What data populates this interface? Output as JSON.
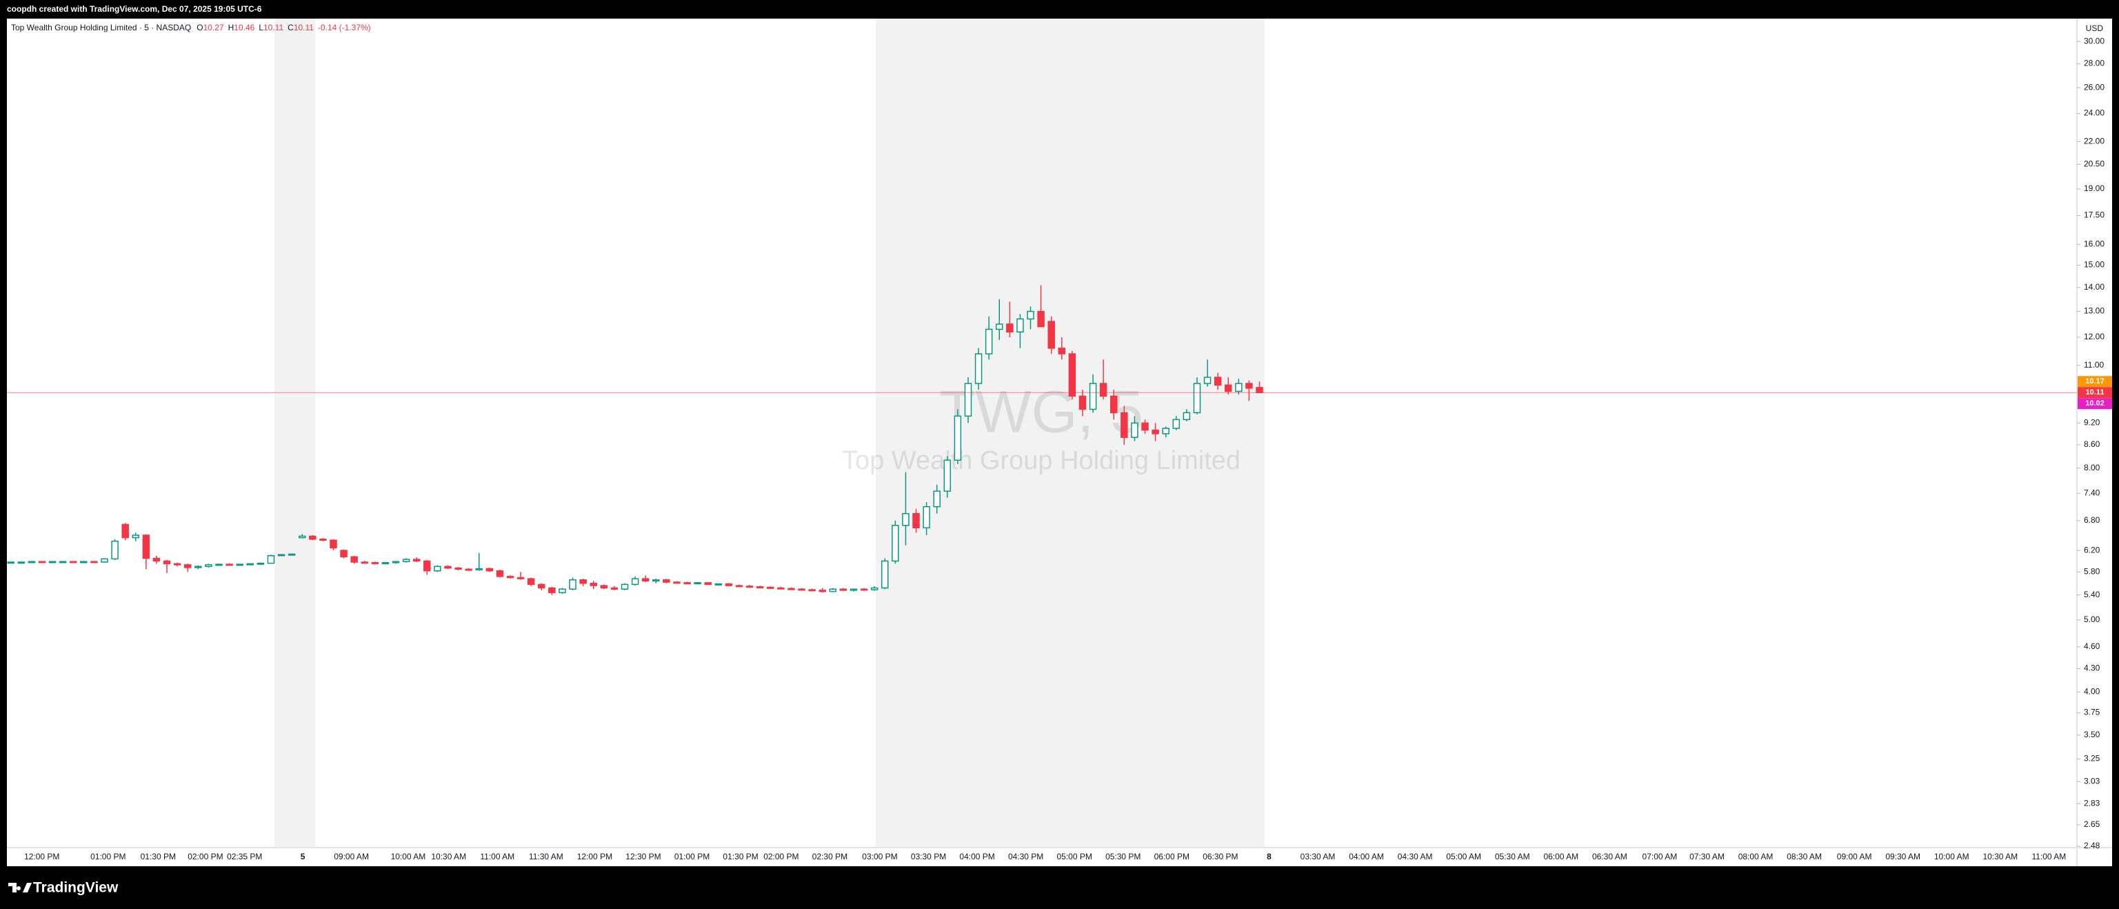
{
  "header": {
    "text": "coopdh created with TradingView.com, Dec 07, 2025 19:05 UTC-6"
  },
  "footer": {
    "brand": "TradingView"
  },
  "chart_data": {
    "type": "candlestick",
    "title": "Top Wealth Group Holding Limited · 5 · NASDAQ",
    "legend": [
      {
        "key": "O",
        "value": "10.27"
      },
      {
        "key": "H",
        "value": "10.46"
      },
      {
        "key": "L",
        "value": "10.11"
      },
      {
        "key": "C",
        "value": "10.11"
      }
    ],
    "change": "-0.14 (-1.37%)",
    "watermark": {
      "symbol": "TWG, 5",
      "name": "Top Wealth Group Holding Limited"
    },
    "currency": "USD",
    "up_color": "#089981",
    "down_color": "#f23645",
    "log_scale": true,
    "ylim": [
      2.48,
      32.2
    ],
    "yticks": [
      {
        "value": 30,
        "label": "30.00"
      },
      {
        "value": 28,
        "label": "28.00"
      },
      {
        "value": 26,
        "label": "26.00"
      },
      {
        "value": 24,
        "label": "24.00"
      },
      {
        "value": 22,
        "label": "22.00"
      },
      {
        "value": 20.5,
        "label": "20.50"
      },
      {
        "value": 19,
        "label": "19.00"
      },
      {
        "value": 17.5,
        "label": "17.50"
      },
      {
        "value": 16,
        "label": "16.00"
      },
      {
        "value": 15,
        "label": "15.00"
      },
      {
        "value": 14,
        "label": "14.00"
      },
      {
        "value": 13,
        "label": "13.00"
      },
      {
        "value": 12,
        "label": "12.00"
      },
      {
        "value": 11,
        "label": "11.00"
      },
      {
        "value": 9.2,
        "label": "9.20"
      },
      {
        "value": 8.6,
        "label": "8.60"
      },
      {
        "value": 8,
        "label": "8.00"
      },
      {
        "value": 7.4,
        "label": "7.40"
      },
      {
        "value": 6.8,
        "label": "6.80"
      },
      {
        "value": 6.2,
        "label": "6.20"
      },
      {
        "value": 5.8,
        "label": "5.80"
      },
      {
        "value": 5.4,
        "label": "5.40"
      },
      {
        "value": 5,
        "label": "5.00"
      },
      {
        "value": 4.6,
        "label": "4.60"
      },
      {
        "value": 4.3,
        "label": "4.30"
      },
      {
        "value": 4,
        "label": "4.00"
      },
      {
        "value": 3.75,
        "label": "3.75"
      },
      {
        "value": 3.5,
        "label": "3.50"
      },
      {
        "value": 3.25,
        "label": "3.25"
      },
      {
        "value": 3.03,
        "label": "3.03"
      },
      {
        "value": 2.83,
        "label": "2.83"
      },
      {
        "value": 2.65,
        "label": "2.65"
      },
      {
        "value": 2.48,
        "label": "2.48"
      }
    ],
    "price_labels": [
      {
        "value": 10.17,
        "color": "#ff9800"
      },
      {
        "value": 10.11,
        "color": "#f23645"
      },
      {
        "value": 10.02,
        "color": "#e91ec4"
      }
    ],
    "time_labels": [
      "12:00 PM",
      "01:00 PM",
      "01:30 PM",
      "02:00 PM",
      "02:35 PM",
      "5",
      "09:00 AM",
      "10:00 AM",
      "10:30 AM",
      "11:00 AM",
      "11:30 AM",
      "12:00 PM",
      "12:30 PM",
      "01:00 PM",
      "01:30 PM",
      "02:00 PM",
      "02:30 PM",
      "03:00 PM",
      "03:30 PM",
      "04:00 PM",
      "04:30 PM",
      "05:00 PM",
      "05:30 PM",
      "06:00 PM",
      "06:30 PM",
      "8",
      "03:30 AM",
      "04:00 AM",
      "04:30 AM",
      "05:00 AM",
      "05:30 AM",
      "06:00 AM",
      "06:30 AM",
      "07:00 AM",
      "07:30 AM",
      "08:00 AM",
      "08:30 AM",
      "09:00 AM",
      "09:30 AM",
      "10:00 AM",
      "10:30 AM",
      "11:00 AM"
    ],
    "ohlc": [
      [
        5.97,
        5.99,
        5.96,
        5.98
      ],
      [
        5.98,
        5.99,
        5.97,
        5.98
      ],
      [
        5.98,
        6.0,
        5.97,
        5.99
      ],
      [
        5.99,
        6.0,
        5.98,
        5.98
      ],
      [
        5.98,
        5.99,
        5.97,
        5.99
      ],
      [
        5.99,
        6.0,
        5.98,
        5.99
      ],
      [
        5.99,
        6.0,
        5.98,
        5.98
      ],
      [
        5.98,
        5.99,
        5.97,
        5.99
      ],
      [
        5.99,
        6.0,
        5.98,
        5.98
      ],
      [
        5.98,
        6.05,
        5.97,
        6.04
      ],
      [
        6.04,
        6.42,
        6.02,
        6.38
      ],
      [
        6.72,
        6.75,
        6.4,
        6.45
      ],
      [
        6.45,
        6.55,
        6.38,
        6.5
      ],
      [
        6.5,
        6.52,
        5.85,
        6.05
      ],
      [
        6.05,
        6.1,
        5.95,
        6.0
      ],
      [
        6.0,
        6.02,
        5.78,
        5.95
      ],
      [
        5.95,
        5.97,
        5.9,
        5.93
      ],
      [
        5.93,
        5.95,
        5.8,
        5.88
      ],
      [
        5.88,
        5.92,
        5.85,
        5.9
      ],
      [
        5.9,
        5.95,
        5.88,
        5.93
      ],
      [
        5.93,
        5.95,
        5.92,
        5.94
      ],
      [
        5.94,
        5.96,
        5.92,
        5.93
      ],
      [
        5.93,
        5.95,
        5.92,
        5.94
      ],
      [
        5.94,
        5.96,
        5.93,
        5.95
      ],
      [
        5.95,
        5.97,
        5.93,
        5.96
      ],
      [
        5.96,
        6.12,
        5.95,
        6.1
      ],
      [
        6.12,
        6.13,
        6.11,
        6.12
      ],
      [
        6.12,
        6.14,
        6.11,
        6.13
      ],
      [
        6.45,
        6.52,
        6.44,
        6.48
      ],
      [
        6.48,
        6.5,
        6.4,
        6.42
      ],
      [
        6.42,
        6.44,
        6.38,
        6.4
      ],
      [
        6.4,
        6.42,
        6.2,
        6.25
      ],
      [
        6.2,
        6.22,
        6.05,
        6.08
      ],
      [
        6.08,
        6.1,
        5.95,
        5.98
      ],
      [
        5.98,
        6.0,
        5.95,
        5.97
      ],
      [
        5.97,
        5.99,
        5.94,
        5.95
      ],
      [
        5.95,
        5.98,
        5.94,
        5.97
      ],
      [
        5.97,
        6.0,
        5.95,
        5.99
      ],
      [
        5.99,
        6.05,
        5.97,
        6.03
      ],
      [
        6.03,
        6.07,
        5.98,
        6.0
      ],
      [
        6.0,
        6.02,
        5.75,
        5.82
      ],
      [
        5.82,
        5.92,
        5.8,
        5.9
      ],
      [
        5.9,
        5.92,
        5.85,
        5.87
      ],
      [
        5.87,
        5.89,
        5.83,
        5.85
      ],
      [
        5.85,
        5.87,
        5.82,
        5.84
      ],
      [
        5.84,
        6.15,
        5.82,
        5.86
      ],
      [
        5.86,
        5.88,
        5.8,
        5.82
      ],
      [
        5.82,
        5.84,
        5.7,
        5.72
      ],
      [
        5.72,
        5.74,
        5.68,
        5.7
      ],
      [
        5.7,
        5.8,
        5.66,
        5.68
      ],
      [
        5.68,
        5.7,
        5.55,
        5.58
      ],
      [
        5.58,
        5.6,
        5.48,
        5.52
      ],
      [
        5.52,
        5.54,
        5.4,
        5.44
      ],
      [
        5.44,
        5.52,
        5.42,
        5.5
      ],
      [
        5.5,
        5.7,
        5.48,
        5.66
      ],
      [
        5.66,
        5.68,
        5.55,
        5.6
      ],
      [
        5.6,
        5.64,
        5.5,
        5.56
      ],
      [
        5.56,
        5.58,
        5.5,
        5.52
      ],
      [
        5.52,
        5.55,
        5.48,
        5.5
      ],
      [
        5.5,
        5.6,
        5.48,
        5.58
      ],
      [
        5.58,
        5.72,
        5.56,
        5.68
      ],
      [
        5.68,
        5.74,
        5.62,
        5.64
      ],
      [
        5.64,
        5.68,
        5.6,
        5.66
      ],
      [
        5.66,
        5.68,
        5.6,
        5.62
      ],
      [
        5.62,
        5.64,
        5.59,
        5.61
      ],
      [
        5.61,
        5.63,
        5.59,
        5.6
      ],
      [
        5.6,
        5.62,
        5.58,
        5.61
      ],
      [
        5.61,
        5.62,
        5.57,
        5.58
      ],
      [
        5.58,
        5.6,
        5.56,
        5.59
      ],
      [
        5.59,
        5.6,
        5.55,
        5.56
      ],
      [
        5.56,
        5.58,
        5.54,
        5.55
      ],
      [
        5.55,
        5.57,
        5.53,
        5.54
      ],
      [
        5.54,
        5.56,
        5.52,
        5.53
      ],
      [
        5.53,
        5.55,
        5.51,
        5.52
      ],
      [
        5.52,
        5.54,
        5.5,
        5.51
      ],
      [
        5.51,
        5.53,
        5.49,
        5.5
      ],
      [
        5.5,
        5.52,
        5.48,
        5.49
      ],
      [
        5.49,
        5.51,
        5.47,
        5.48
      ],
      [
        5.48,
        5.52,
        5.44,
        5.46
      ],
      [
        5.46,
        5.52,
        5.45,
        5.5
      ],
      [
        5.5,
        5.52,
        5.47,
        5.48
      ],
      [
        5.48,
        5.51,
        5.46,
        5.5
      ],
      [
        5.5,
        5.52,
        5.47,
        5.49
      ],
      [
        5.49,
        5.55,
        5.47,
        5.52
      ],
      [
        5.52,
        6.05,
        5.5,
        6.0
      ],
      [
        6.0,
        6.8,
        5.95,
        6.7
      ],
      [
        6.7,
        7.9,
        6.3,
        6.95
      ],
      [
        6.95,
        7.05,
        6.55,
        6.65
      ],
      [
        6.65,
        7.2,
        6.5,
        7.1
      ],
      [
        7.1,
        7.6,
        6.95,
        7.45
      ],
      [
        7.45,
        8.3,
        7.3,
        8.2
      ],
      [
        8.2,
        9.6,
        8.1,
        9.4
      ],
      [
        9.4,
        10.6,
        9.2,
        10.4
      ],
      [
        10.4,
        11.6,
        10.2,
        11.4
      ],
      [
        11.4,
        12.8,
        11.2,
        12.3
      ],
      [
        12.3,
        13.5,
        11.9,
        12.5
      ],
      [
        12.5,
        13.4,
        12.0,
        12.2
      ],
      [
        12.2,
        12.9,
        11.6,
        12.7
      ],
      [
        12.7,
        13.2,
        12.3,
        13.0
      ],
      [
        13.0,
        14.1,
        12.5,
        12.4
      ],
      [
        12.6,
        12.8,
        11.4,
        11.6
      ],
      [
        11.6,
        12.0,
        11.2,
        11.4
      ],
      [
        11.4,
        11.5,
        9.9,
        10.0
      ],
      [
        10.0,
        10.2,
        9.4,
        9.6
      ],
      [
        9.6,
        10.7,
        9.5,
        10.4
      ],
      [
        10.4,
        11.2,
        9.9,
        10.0
      ],
      [
        10.0,
        10.2,
        9.3,
        9.5
      ],
      [
        9.5,
        9.7,
        8.6,
        8.8
      ],
      [
        8.8,
        9.4,
        8.7,
        9.2
      ],
      [
        9.2,
        9.3,
        8.9,
        9.0
      ],
      [
        9.0,
        9.2,
        8.7,
        8.9
      ],
      [
        8.9,
        9.1,
        8.8,
        9.05
      ],
      [
        9.05,
        9.4,
        9.0,
        9.3
      ],
      [
        9.3,
        9.6,
        9.25,
        9.5
      ],
      [
        9.5,
        10.6,
        9.45,
        10.4
      ],
      [
        10.4,
        11.2,
        10.3,
        10.6
      ],
      [
        10.6,
        10.75,
        10.2,
        10.35
      ],
      [
        10.35,
        10.6,
        10.05,
        10.15
      ],
      [
        10.15,
        10.55,
        10.05,
        10.4
      ],
      [
        10.4,
        10.5,
        9.85,
        10.25
      ],
      [
        10.27,
        10.46,
        10.11,
        10.11
      ]
    ]
  }
}
